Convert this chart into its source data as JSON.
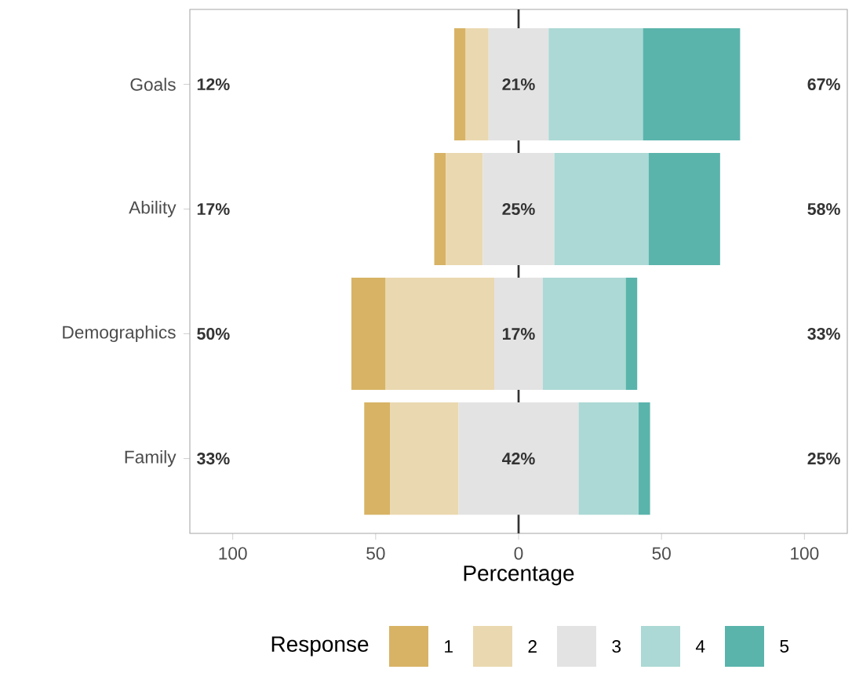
{
  "chart_data": {
    "type": "bar",
    "orientation": "horizontal",
    "xlabel": "Percentage",
    "legend_title": "Response",
    "legend": "bottom",
    "categories": [
      "Goals",
      "Ability",
      "Demographics",
      "Family"
    ],
    "xlim": [
      -115,
      115
    ],
    "xticks": [
      {
        "value": -100,
        "label": "100"
      },
      {
        "value": -50,
        "label": "50"
      },
      0,
      50,
      100
    ],
    "ref_lines": [
      {
        "axis": "x",
        "value": 0,
        "color": "#333333"
      }
    ],
    "series": [
      {
        "name": "1",
        "color": "#d8b365",
        "base": [
          -22.5,
          -29.5,
          -58.5,
          -54
        ],
        "values": [
          4,
          4,
          12,
          9
        ]
      },
      {
        "name": "2",
        "color": "#ead8b0",
        "base": [
          -18.5,
          -25.5,
          -46.5,
          -45
        ],
        "values": [
          8,
          13,
          38,
          24
        ]
      },
      {
        "name": "3",
        "color": "#e3e3e3",
        "base": [
          -10.5,
          -12.5,
          -8.5,
          -21
        ],
        "values": [
          21,
          25,
          17,
          42
        ],
        "value_labels": [
          "21%",
          "25%",
          "17%",
          "42%"
        ]
      },
      {
        "name": "4",
        "color": "#acd9d5",
        "base": [
          10.5,
          12.5,
          8.5,
          21
        ],
        "values": [
          33,
          33,
          29,
          21
        ]
      },
      {
        "name": "5",
        "color": "#5ab4ac",
        "base": [
          43.5,
          45.5,
          37.5,
          42
        ],
        "values": [
          34,
          25,
          4,
          4
        ]
      }
    ],
    "annotations": [
      "12%",
      "67%",
      "17%",
      "58%",
      "50%",
      "33%",
      "33%",
      "25%"
    ]
  }
}
